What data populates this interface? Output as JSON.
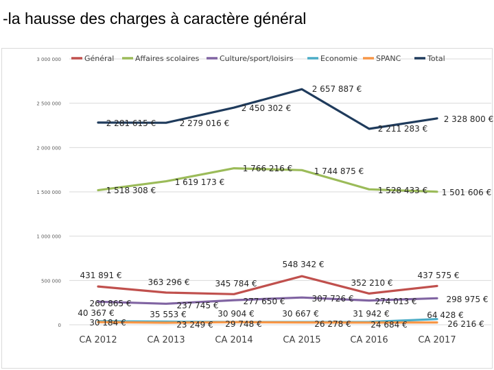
{
  "slide": {
    "title": "-la hausse des charges à caractère général"
  },
  "chart_data": {
    "type": "line",
    "categories": [
      "CA 2012",
      "CA 2013",
      "CA 2014",
      "CA 2015",
      "CA 2016",
      "CA 2017"
    ],
    "ylim": [
      0,
      3000000
    ],
    "yticks": [
      0,
      500000,
      1000000,
      1500000,
      2000000,
      2500000,
      3000000
    ],
    "ytick_labels": [
      "0",
      "500 000",
      "1 000 000",
      "1 500 000",
      "2 000 000",
      "2 500 000",
      "3 000 000"
    ],
    "grid": true,
    "legend_position": "top",
    "series": [
      {
        "name": "Général",
        "color": "#c0504d",
        "values": [
          431891,
          363296,
          345784,
          548342,
          352210,
          437575
        ],
        "labels": [
          "431 891 €",
          "363 296 €",
          "345 784 €",
          "548 342 €",
          "352 210 €",
          "437 575 €"
        ]
      },
      {
        "name": "Affaires scolaires",
        "color": "#9bbb59",
        "values": [
          1518308,
          1619173,
          1766216,
          1744875,
          1528433,
          1501606
        ],
        "labels": [
          "1 518 308 €",
          "1 619 173 €",
          "1 766 216 €",
          "1 744 875 €",
          "1 528 433 €",
          "1 501 606 €"
        ]
      },
      {
        "name": "Culture/sport/loisirs",
        "color": "#8064a2",
        "values": [
          260865,
          237745,
          277650,
          307726,
          274013,
          298975
        ],
        "labels": [
          "260 865 €",
          "237 745 €",
          "277 650 €",
          "307 726 €",
          "274 013 €",
          "298 975 €"
        ]
      },
      {
        "name": "Economie",
        "color": "#4bacc6",
        "values": [
          40367,
          35553,
          30904,
          30667,
          31942,
          64428
        ],
        "labels": [
          "40 367 €",
          "35 553 €",
          "30 904 €",
          "30 667 €",
          "31 942 €",
          "64 428 €"
        ]
      },
      {
        "name": "SPANC",
        "color": "#f79646",
        "values": [
          30184,
          23249,
          29748,
          26278,
          24684,
          26216
        ],
        "labels": [
          "30 184 €",
          "23 249 €",
          "29 748 €",
          "26 278 €",
          "24 684 €",
          "26 216 €"
        ]
      },
      {
        "name": "Total",
        "color": "#1f3b5c",
        "values": [
          2281615,
          2279016,
          2450302,
          2657887,
          2211283,
          2328800
        ],
        "labels": [
          "2 281 615 €",
          "2 279 016 €",
          "2 450 302 €",
          "2 657 887 €",
          "2 211 283 €",
          "2 328 800 €"
        ]
      }
    ]
  }
}
